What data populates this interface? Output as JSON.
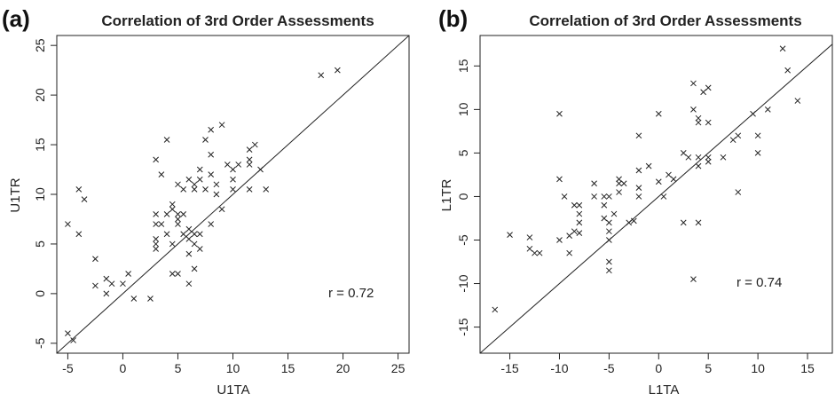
{
  "chart_data": [
    {
      "type": "scatter",
      "panel_label": "(a)",
      "title": "Correlation of 3rd Order Assessments",
      "xlabel": "U1TA",
      "ylabel": "U1TR",
      "xlim": [
        -6,
        26
      ],
      "ylim": [
        -6,
        26
      ],
      "xticks": [
        -5,
        0,
        5,
        10,
        15,
        20,
        25
      ],
      "yticks": [
        -5,
        0,
        5,
        10,
        15,
        20,
        25
      ],
      "xtick_labels": [
        "-5",
        "0",
        "5",
        "10",
        "15",
        "20",
        "25"
      ],
      "ytick_labels": [
        "-5",
        "0",
        "5",
        "10",
        "15",
        "20",
        "25"
      ],
      "reference_line": "y = x",
      "annotation": "r = 0.72",
      "marker": "x",
      "points": [
        [
          -5,
          7
        ],
        [
          -5,
          -4
        ],
        [
          -4.5,
          -4.7
        ],
        [
          -4,
          10.5
        ],
        [
          -4,
          6
        ],
        [
          -3.5,
          9.5
        ],
        [
          -2.5,
          3.5
        ],
        [
          -2.5,
          0.8
        ],
        [
          -1.5,
          1.5
        ],
        [
          -1.5,
          0
        ],
        [
          -1,
          1
        ],
        [
          0,
          1
        ],
        [
          0.5,
          2
        ],
        [
          1,
          -0.5
        ],
        [
          2.5,
          -0.5
        ],
        [
          3,
          13.5
        ],
        [
          3,
          8
        ],
        [
          3,
          7
        ],
        [
          3,
          5.5
        ],
        [
          3,
          5
        ],
        [
          3,
          4.5
        ],
        [
          3.5,
          12
        ],
        [
          3.5,
          7
        ],
        [
          4,
          15.5
        ],
        [
          4,
          8
        ],
        [
          4,
          6
        ],
        [
          4.5,
          9
        ],
        [
          4.5,
          8.5
        ],
        [
          4.5,
          5
        ],
        [
          4.5,
          2
        ],
        [
          5,
          11
        ],
        [
          5,
          8
        ],
        [
          5,
          7.5
        ],
        [
          5,
          7
        ],
        [
          5,
          2
        ],
        [
          5.5,
          10.5
        ],
        [
          5.5,
          8
        ],
        [
          5.5,
          6
        ],
        [
          6,
          11.5
        ],
        [
          6,
          6.5
        ],
        [
          6,
          5.5
        ],
        [
          6,
          4
        ],
        [
          6,
          1
        ],
        [
          6.5,
          11
        ],
        [
          6.5,
          10.5
        ],
        [
          6.5,
          6
        ],
        [
          6.5,
          5
        ],
        [
          6.5,
          2.5
        ],
        [
          7,
          12.5
        ],
        [
          7,
          11.5
        ],
        [
          7,
          6
        ],
        [
          7,
          4.5
        ],
        [
          7.5,
          15.5
        ],
        [
          7.5,
          10.5
        ],
        [
          8,
          16.5
        ],
        [
          8,
          14
        ],
        [
          8,
          12
        ],
        [
          8,
          7
        ],
        [
          8.5,
          11
        ],
        [
          8.5,
          10
        ],
        [
          9,
          17
        ],
        [
          9,
          8.5
        ],
        [
          9.5,
          13
        ],
        [
          10,
          12.5
        ],
        [
          10,
          11.5
        ],
        [
          10,
          10.5
        ],
        [
          10.5,
          13
        ],
        [
          11.5,
          14.5
        ],
        [
          11.5,
          13.5
        ],
        [
          11.5,
          13
        ],
        [
          11.5,
          10.5
        ],
        [
          12,
          15
        ],
        [
          12.5,
          12.5
        ],
        [
          13,
          10.5
        ],
        [
          18,
          22
        ],
        [
          19.5,
          22.5
        ]
      ]
    },
    {
      "type": "scatter",
      "panel_label": "(b)",
      "title": "Correlation of 3rd Order Assessments",
      "xlabel": "L1TA",
      "ylabel": "L1TR",
      "xlim": [
        -18,
        17.5
      ],
      "ylim": [
        -18,
        18.5
      ],
      "xticks": [
        -15,
        -10,
        -5,
        0,
        5,
        10,
        15
      ],
      "yticks": [
        -15,
        -10,
        -5,
        0,
        5,
        10,
        15
      ],
      "xtick_labels": [
        "-15",
        "-10",
        "-5",
        "0",
        "5",
        "10",
        "15"
      ],
      "ytick_labels": [
        "-15",
        "-10",
        "-5",
        "0",
        "5",
        "10",
        "15"
      ],
      "reference_line": "y = x",
      "annotation": "r = 0.74",
      "marker": "x",
      "points": [
        [
          -16.5,
          -13
        ],
        [
          -15,
          -4.4
        ],
        [
          -13,
          -4.7
        ],
        [
          -13,
          -6
        ],
        [
          -12.5,
          -6.5
        ],
        [
          -12,
          -6.5
        ],
        [
          -10,
          9.5
        ],
        [
          -10,
          2
        ],
        [
          -10,
          -5
        ],
        [
          -9.5,
          0
        ],
        [
          -9,
          -4.5
        ],
        [
          -9,
          -6.5
        ],
        [
          -8.5,
          -1
        ],
        [
          -8.5,
          -4
        ],
        [
          -8,
          -1
        ],
        [
          -8,
          -3
        ],
        [
          -8,
          -4.2
        ],
        [
          -8,
          -2
        ],
        [
          -6.5,
          1.5
        ],
        [
          -6.5,
          0
        ],
        [
          -5.5,
          0
        ],
        [
          -5.5,
          -1
        ],
        [
          -5.5,
          -2.5
        ],
        [
          -5,
          0
        ],
        [
          -5,
          -3
        ],
        [
          -5,
          -4
        ],
        [
          -5,
          -5
        ],
        [
          -5,
          -7.5
        ],
        [
          -5,
          -8.5
        ],
        [
          -4.5,
          -2
        ],
        [
          -4,
          2
        ],
        [
          -4,
          1.5
        ],
        [
          -4,
          0.5
        ],
        [
          -3.5,
          1.5
        ],
        [
          -3,
          -3
        ],
        [
          -2.5,
          -2.8
        ],
        [
          -2,
          7
        ],
        [
          -2,
          3
        ],
        [
          -2,
          1
        ],
        [
          -2,
          0
        ],
        [
          -1,
          3.5
        ],
        [
          0,
          9.5
        ],
        [
          0,
          1.7
        ],
        [
          0.5,
          0
        ],
        [
          1,
          2.5
        ],
        [
          1.5,
          2
        ],
        [
          2.5,
          5
        ],
        [
          2.5,
          -3
        ],
        [
          3,
          4.5
        ],
        [
          3.5,
          13
        ],
        [
          3.5,
          10
        ],
        [
          3.5,
          -9.5
        ],
        [
          4,
          9
        ],
        [
          4,
          8.5
        ],
        [
          4,
          4.5
        ],
        [
          4,
          3.5
        ],
        [
          4,
          -3
        ],
        [
          4.5,
          12
        ],
        [
          5,
          12.5
        ],
        [
          5,
          8.5
        ],
        [
          5,
          4.5
        ],
        [
          5,
          4
        ],
        [
          6.5,
          4.5
        ],
        [
          7.5,
          6.5
        ],
        [
          8,
          7
        ],
        [
          8,
          0.5
        ],
        [
          9.5,
          9.5
        ],
        [
          10,
          7
        ],
        [
          10,
          5
        ],
        [
          11,
          10
        ],
        [
          12.5,
          17
        ],
        [
          13,
          14.5
        ],
        [
          14,
          11
        ]
      ]
    }
  ]
}
